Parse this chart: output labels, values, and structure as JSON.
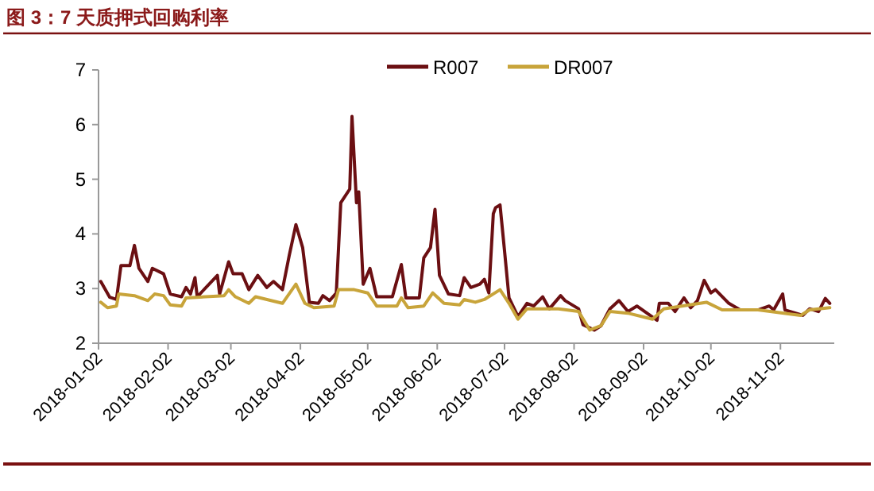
{
  "chart_data": {
    "type": "line",
    "title": "图 3：7 天质押式回购利率",
    "legend": "top",
    "grid": false,
    "marker": "none",
    "line_style": "solid",
    "xlim": [
      "2018-01-02",
      "2018-11-26"
    ],
    "xticks": [
      "2018-01-02",
      "2018-02-02",
      "2018-03-02",
      "2018-04-02",
      "2018-05-02",
      "2018-06-02",
      "2018-07-02",
      "2018-08-02",
      "2018-09-02",
      "2018-10-02",
      "2018-11-02"
    ],
    "ylim": [
      2,
      7
    ],
    "yticks": [
      2,
      3,
      4,
      5,
      6,
      7
    ],
    "series": [
      {
        "name": "R007",
        "color": "#6b0f12",
        "x": [
          "2018-01-03",
          "2018-01-07",
          "2018-01-10",
          "2018-01-12",
          "2018-01-16",
          "2018-01-18",
          "2018-01-20",
          "2018-01-24",
          "2018-01-26",
          "2018-01-31",
          "2018-02-03",
          "2018-02-08",
          "2018-02-10",
          "2018-02-12",
          "2018-02-14",
          "2018-02-15",
          "2018-02-24",
          "2018-02-25",
          "2018-03-01",
          "2018-03-03",
          "2018-03-07",
          "2018-03-10",
          "2018-03-14",
          "2018-03-18",
          "2018-03-21",
          "2018-03-25",
          "2018-03-28",
          "2018-03-31",
          "2018-04-03",
          "2018-04-06",
          "2018-04-10",
          "2018-04-12",
          "2018-04-15",
          "2018-04-18",
          "2018-04-20",
          "2018-04-24",
          "2018-04-25",
          "2018-04-27",
          "2018-04-28",
          "2018-04-30",
          "2018-05-03",
          "2018-05-06",
          "2018-05-13",
          "2018-05-17",
          "2018-05-19",
          "2018-05-25",
          "2018-05-27",
          "2018-05-30",
          "2018-06-01",
          "2018-06-03",
          "2018-06-07",
          "2018-06-12",
          "2018-06-14",
          "2018-06-17",
          "2018-06-21",
          "2018-06-23",
          "2018-06-25",
          "2018-06-27",
          "2018-06-28",
          "2018-06-30",
          "2018-07-02",
          "2018-07-04",
          "2018-07-08",
          "2018-07-12",
          "2018-07-15",
          "2018-07-19",
          "2018-07-22",
          "2018-07-27",
          "2018-07-29",
          "2018-08-04",
          "2018-08-06",
          "2018-08-11",
          "2018-08-14",
          "2018-08-18",
          "2018-08-22",
          "2018-08-26",
          "2018-08-30",
          "2018-09-08",
          "2018-09-09",
          "2018-09-13",
          "2018-09-16",
          "2018-09-20",
          "2018-09-23",
          "2018-09-26",
          "2018-09-29",
          "2018-10-02",
          "2018-10-04",
          "2018-10-10",
          "2018-10-15",
          "2018-10-23",
          "2018-10-28",
          "2018-10-30",
          "2018-11-03",
          "2018-11-04",
          "2018-11-12",
          "2018-11-15",
          "2018-11-19",
          "2018-11-22",
          "2018-11-24"
        ],
        "values": [
          3.13,
          2.84,
          2.8,
          3.42,
          3.42,
          3.79,
          3.37,
          3.13,
          3.37,
          3.27,
          2.9,
          2.85,
          3.02,
          2.9,
          3.2,
          2.85,
          3.24,
          2.9,
          3.49,
          3.27,
          3.27,
          2.98,
          3.24,
          3.02,
          3.13,
          2.98,
          3.6,
          4.17,
          3.75,
          2.75,
          2.73,
          2.87,
          2.78,
          2.92,
          4.57,
          4.82,
          6.15,
          4.57,
          4.77,
          3.08,
          3.37,
          2.85,
          2.85,
          3.44,
          2.83,
          2.83,
          3.56,
          3.75,
          4.45,
          3.24,
          2.9,
          2.87,
          3.2,
          3.02,
          3.08,
          3.17,
          2.92,
          4.37,
          4.48,
          4.53,
          3.69,
          2.83,
          2.49,
          2.73,
          2.68,
          2.85,
          2.63,
          2.87,
          2.78,
          2.63,
          2.34,
          2.24,
          2.32,
          2.63,
          2.78,
          2.58,
          2.68,
          2.42,
          2.73,
          2.73,
          2.58,
          2.83,
          2.65,
          2.78,
          3.15,
          2.92,
          2.98,
          2.73,
          2.61,
          2.61,
          2.68,
          2.61,
          2.9,
          2.61,
          2.51,
          2.63,
          2.58,
          2.82,
          2.73
        ]
      },
      {
        "name": "DR007",
        "color": "#c8a43a",
        "x": [
          "2018-01-03",
          "2018-01-06",
          "2018-01-10",
          "2018-01-11",
          "2018-01-18",
          "2018-01-24",
          "2018-01-27",
          "2018-01-31",
          "2018-02-03",
          "2018-02-08",
          "2018-02-10",
          "2018-02-27",
          "2018-03-01",
          "2018-03-04",
          "2018-03-10",
          "2018-03-13",
          "2018-03-25",
          "2018-03-31",
          "2018-04-04",
          "2018-04-08",
          "2018-04-17",
          "2018-04-19",
          "2018-04-26",
          "2018-05-02",
          "2018-05-06",
          "2018-05-15",
          "2018-05-17",
          "2018-05-20",
          "2018-05-27",
          "2018-05-31",
          "2018-06-05",
          "2018-06-12",
          "2018-06-14",
          "2018-06-19",
          "2018-06-23",
          "2018-06-30",
          "2018-07-04",
          "2018-07-08",
          "2018-07-12",
          "2018-07-26",
          "2018-08-04",
          "2018-08-09",
          "2018-08-14",
          "2018-08-18",
          "2018-08-26",
          "2018-09-06",
          "2018-09-11",
          "2018-09-30",
          "2018-10-07",
          "2018-10-23",
          "2018-11-11",
          "2018-11-15",
          "2018-11-24"
        ],
        "values": [
          2.75,
          2.65,
          2.68,
          2.9,
          2.87,
          2.78,
          2.9,
          2.87,
          2.7,
          2.68,
          2.83,
          2.87,
          2.98,
          2.85,
          2.73,
          2.85,
          2.73,
          3.08,
          2.73,
          2.65,
          2.68,
          2.98,
          2.98,
          2.92,
          2.68,
          2.68,
          2.83,
          2.65,
          2.68,
          2.92,
          2.73,
          2.7,
          2.8,
          2.75,
          2.8,
          2.98,
          2.73,
          2.44,
          2.63,
          2.63,
          2.58,
          2.24,
          2.32,
          2.58,
          2.55,
          2.44,
          2.63,
          2.75,
          2.61,
          2.61,
          2.51,
          2.61,
          2.65
        ]
      }
    ]
  }
}
